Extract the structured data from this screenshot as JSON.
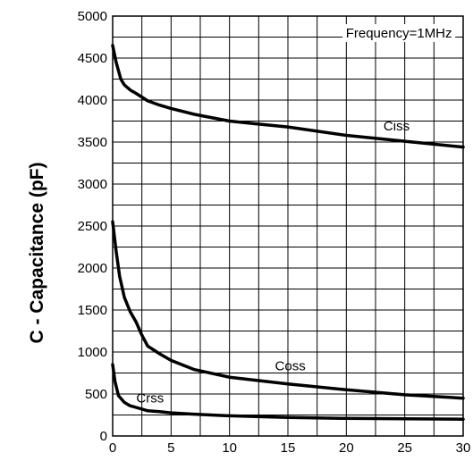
{
  "chart_data": {
    "type": "line",
    "title": "",
    "xlabel": "",
    "ylabel": "C - Capacitance (pF)",
    "xlim": [
      0,
      30
    ],
    "ylim": [
      0,
      5000
    ],
    "xticks": [
      0,
      5,
      10,
      15,
      20,
      25,
      30
    ],
    "yticks": [
      0,
      500,
      1000,
      1500,
      2000,
      2500,
      3000,
      3500,
      4000,
      4500,
      5000
    ],
    "grid": true,
    "annotation": "Frequency=1MHz",
    "colors": {
      "line": "#000000",
      "grid": "#000000",
      "background": "#ffffff"
    },
    "series": [
      {
        "name": "Ciss",
        "x": [
          0,
          0.3,
          0.7,
          1,
          1.5,
          2,
          3,
          4,
          5,
          7,
          10,
          12,
          15,
          20,
          25,
          30
        ],
        "y": [
          4650,
          4450,
          4250,
          4180,
          4120,
          4080,
          3990,
          3940,
          3900,
          3830,
          3750,
          3720,
          3680,
          3580,
          3510,
          3440
        ]
      },
      {
        "name": "Coss",
        "x": [
          0,
          0.3,
          0.6,
          1,
          1.5,
          2,
          2.5,
          3,
          4,
          5,
          7,
          10,
          15,
          20,
          25,
          30
        ],
        "y": [
          2550,
          2200,
          1900,
          1650,
          1480,
          1360,
          1200,
          1070,
          980,
          900,
          790,
          700,
          620,
          550,
          490,
          450
        ]
      },
      {
        "name": "Crss",
        "x": [
          0,
          0.2,
          0.5,
          1,
          1.5,
          2,
          3,
          4,
          5,
          7,
          10,
          15,
          20,
          25,
          30
        ],
        "y": [
          850,
          650,
          480,
          400,
          360,
          340,
          300,
          290,
          275,
          260,
          240,
          220,
          210,
          205,
          200
        ]
      }
    ]
  }
}
